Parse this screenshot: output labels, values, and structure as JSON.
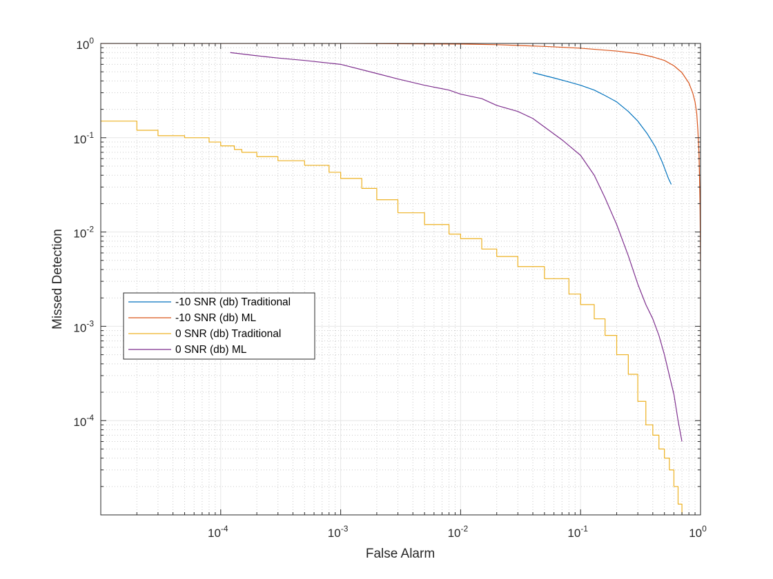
{
  "chart_data": {
    "type": "line",
    "title": "",
    "xlabel": "False Alarm",
    "ylabel": "Missed Detection",
    "xscale": "log",
    "yscale": "log",
    "xlim": [
      1e-05,
      1
    ],
    "ylim": [
      1e-05,
      1
    ],
    "grid": true,
    "minor_grid": true,
    "legend_position": "center-left",
    "x_tick_labels": [
      {
        "value": 0.0001,
        "base": "10",
        "exp": "-4"
      },
      {
        "value": 0.001,
        "base": "10",
        "exp": "-3"
      },
      {
        "value": 0.01,
        "base": "10",
        "exp": "-2"
      },
      {
        "value": 0.1,
        "base": "10",
        "exp": "-1"
      },
      {
        "value": 1,
        "base": "10",
        "exp": "0"
      }
    ],
    "y_tick_labels": [
      {
        "value": 0.0001,
        "base": "10",
        "exp": "-4"
      },
      {
        "value": 0.001,
        "base": "10",
        "exp": "-3"
      },
      {
        "value": 0.01,
        "base": "10",
        "exp": "-2"
      },
      {
        "value": 0.1,
        "base": "10",
        "exp": "-1"
      },
      {
        "value": 1,
        "base": "10",
        "exp": "0"
      }
    ],
    "series": [
      {
        "name": "-10 SNR (db) Traditional",
        "color": "#0072BD",
        "step": false,
        "x": [
          0.04,
          0.06,
          0.08,
          0.1,
          0.13,
          0.16,
          0.2,
          0.25,
          0.3,
          0.36,
          0.42,
          0.48,
          0.54,
          0.57
        ],
        "y": [
          0.49,
          0.43,
          0.39,
          0.36,
          0.32,
          0.28,
          0.24,
          0.19,
          0.15,
          0.11,
          0.08,
          0.055,
          0.037,
          0.032
        ]
      },
      {
        "name": "-10 SNR (db) ML",
        "color": "#D95319",
        "step": false,
        "x": [
          1e-05,
          0.0002,
          0.001,
          0.005,
          0.01,
          0.02,
          0.05,
          0.1,
          0.2,
          0.3,
          0.4,
          0.5,
          0.6,
          0.7,
          0.8,
          0.86,
          0.9,
          0.93,
          0.95,
          0.97,
          0.98,
          0.99,
          0.995,
          1.0,
          1.0
        ],
        "y": [
          1,
          1,
          1,
          0.99,
          0.985,
          0.97,
          0.93,
          0.89,
          0.83,
          0.78,
          0.72,
          0.66,
          0.58,
          0.49,
          0.38,
          0.3,
          0.24,
          0.18,
          0.12,
          0.07,
          0.04,
          0.02,
          0.01,
          0.004,
          0.0001
        ]
      },
      {
        "name": "0 SNR (db) Traditional",
        "color": "#EDB120",
        "step": true,
        "x": [
          1e-05,
          2e-05,
          3e-05,
          5e-05,
          8e-05,
          0.0001,
          0.00013,
          0.00015,
          0.0002,
          0.0003,
          0.0005,
          0.0008,
          0.001,
          0.0015,
          0.002,
          0.003,
          0.005,
          0.008,
          0.01,
          0.015,
          0.02,
          0.03,
          0.05,
          0.08,
          0.1,
          0.13,
          0.16,
          0.2,
          0.25,
          0.3,
          0.35,
          0.4,
          0.45,
          0.5,
          0.55,
          0.6,
          0.65,
          0.7
        ],
        "y": [
          0.15,
          0.12,
          0.105,
          0.1,
          0.09,
          0.082,
          0.075,
          0.07,
          0.063,
          0.057,
          0.051,
          0.043,
          0.037,
          0.029,
          0.022,
          0.016,
          0.012,
          0.0095,
          0.0085,
          0.0066,
          0.0055,
          0.0043,
          0.0032,
          0.0022,
          0.0017,
          0.0012,
          0.0008,
          0.0005,
          0.00031,
          0.00016,
          9e-05,
          7e-05,
          5e-05,
          4e-05,
          3e-05,
          2e-05,
          1.3e-05,
          1e-05
        ]
      },
      {
        "name": "0 SNR (db) ML",
        "color": "#7E2F8E",
        "step": false,
        "x": [
          0.00012,
          0.0002,
          0.0003,
          0.0005,
          0.001,
          0.002,
          0.003,
          0.005,
          0.008,
          0.01,
          0.015,
          0.02,
          0.03,
          0.04,
          0.05,
          0.07,
          0.1,
          0.13,
          0.16,
          0.2,
          0.25,
          0.3,
          0.35,
          0.4,
          0.45,
          0.5,
          0.55,
          0.6,
          0.65,
          0.7
        ],
        "y": [
          0.8,
          0.74,
          0.7,
          0.66,
          0.6,
          0.48,
          0.42,
          0.36,
          0.32,
          0.29,
          0.26,
          0.22,
          0.19,
          0.16,
          0.13,
          0.095,
          0.065,
          0.04,
          0.023,
          0.012,
          0.0056,
          0.0028,
          0.0017,
          0.0012,
          0.0008,
          0.0005,
          0.0003,
          0.00019,
          0.0001,
          6e-05
        ]
      }
    ]
  }
}
